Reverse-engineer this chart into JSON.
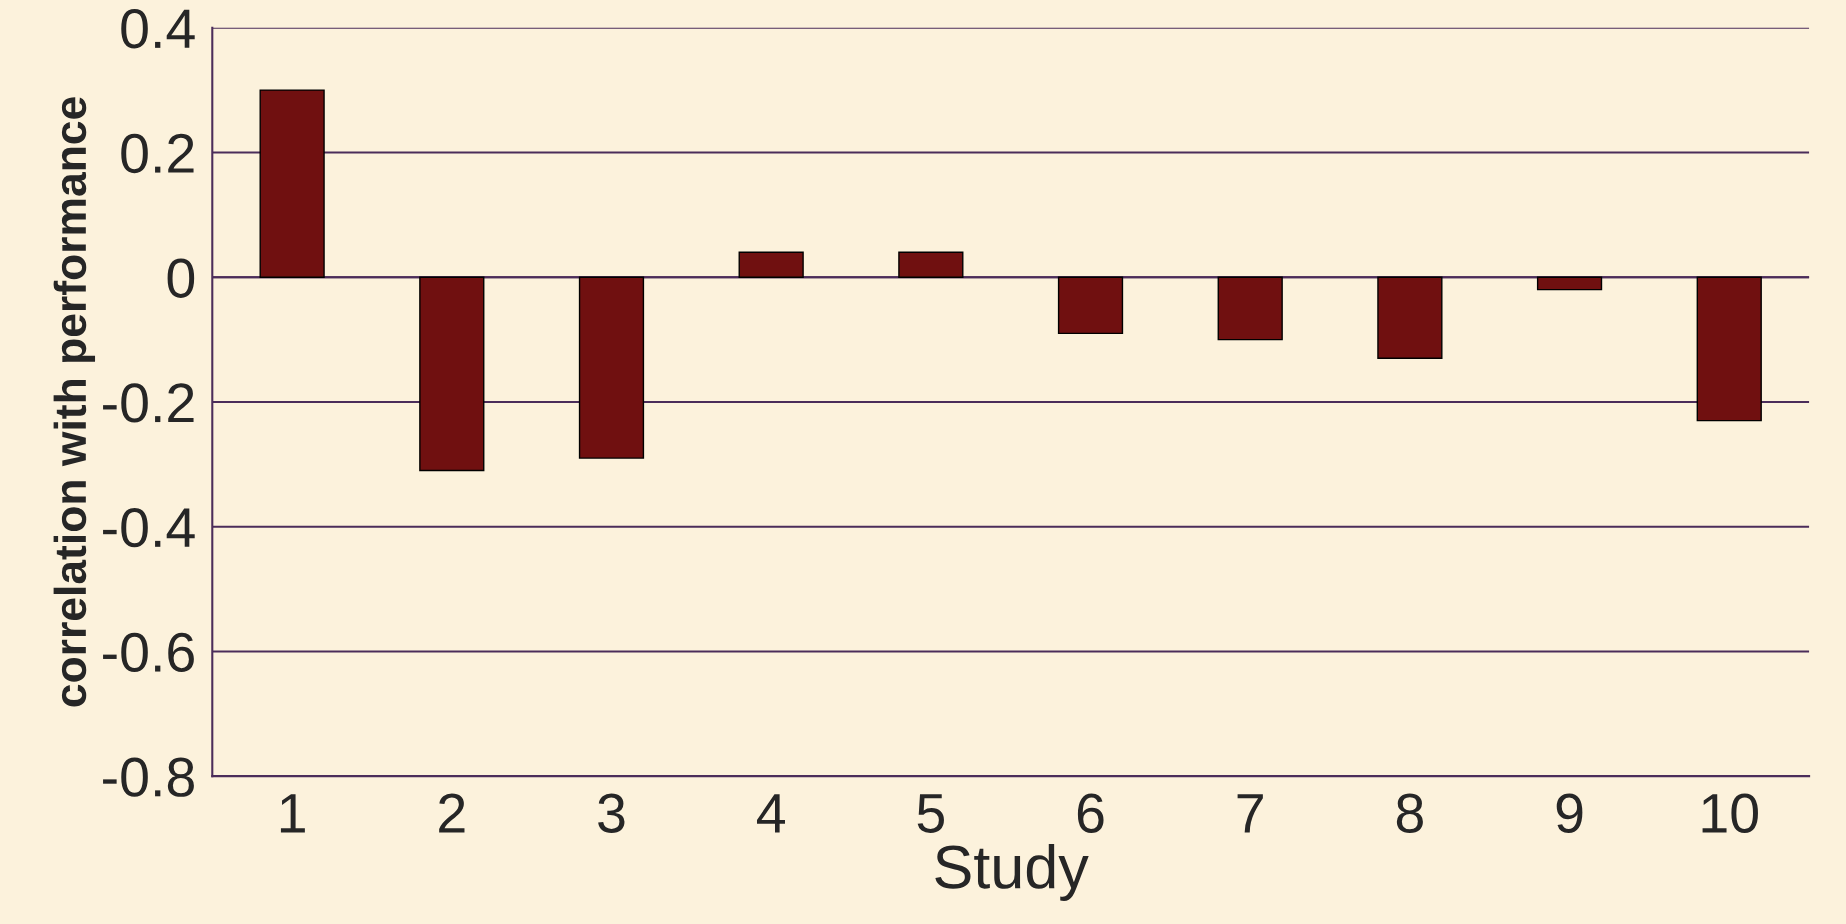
{
  "chart_data": {
    "type": "bar",
    "xlabel": "Study",
    "ylabel": "correlation with performance",
    "categories": [
      "1",
      "2",
      "3",
      "4",
      "5",
      "6",
      "7",
      "8",
      "9",
      "10"
    ],
    "values": [
      0.3,
      -0.31,
      -0.29,
      0.04,
      0.04,
      -0.09,
      -0.1,
      -0.13,
      -0.02,
      -0.23
    ],
    "color": "#800000",
    "ylim": [
      -0.8,
      0.4
    ],
    "yticks": [
      -0.8,
      -0.6,
      -0.4,
      -0.2,
      0,
      0.2,
      0.4
    ],
    "grid": "y"
  }
}
